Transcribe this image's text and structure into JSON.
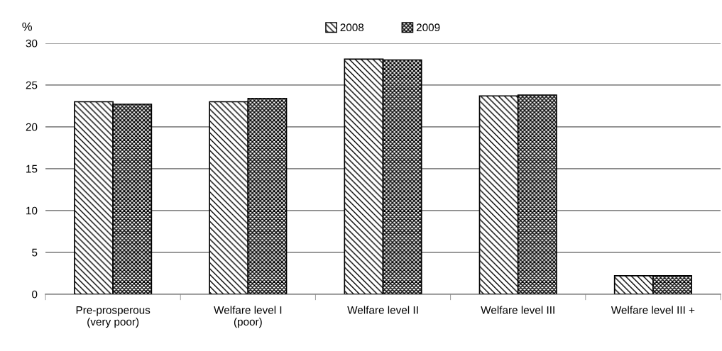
{
  "chart_data": {
    "type": "bar",
    "ylabel": "%",
    "categories": [
      "Pre-prosperous\n(very poor)",
      "Welfare level I\n(poor)",
      "Welfare level II",
      "Welfare level III",
      "Welfare level III +"
    ],
    "series": [
      {
        "name": "2008",
        "color": "#000000",
        "values": [
          23.0,
          23.0,
          28.1,
          23.7,
          2.2
        ]
      },
      {
        "name": "2009",
        "color": "#000000",
        "values": [
          22.7,
          23.4,
          28.0,
          23.8,
          2.2
        ]
      }
    ],
    "ylim": [
      0,
      30
    ],
    "yticks": [
      0,
      5,
      10,
      15,
      20,
      25,
      30
    ],
    "grid": "y",
    "legend": "top"
  }
}
